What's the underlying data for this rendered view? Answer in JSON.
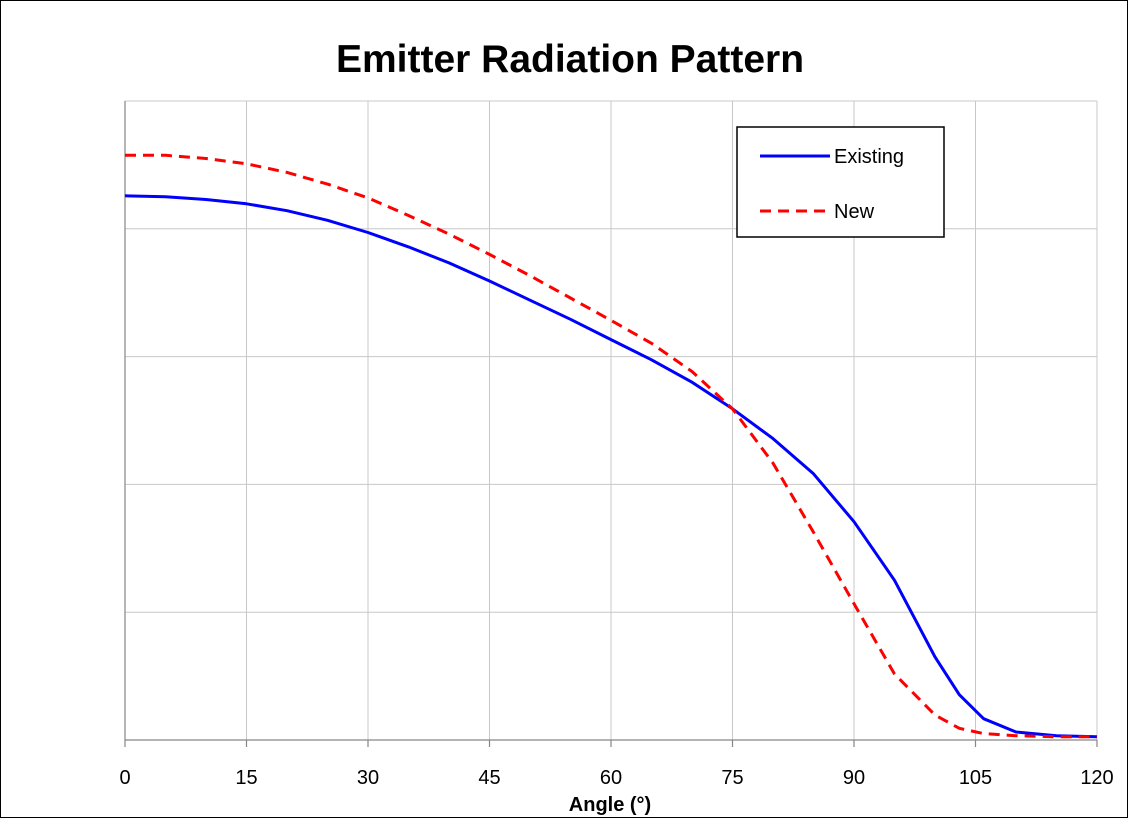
{
  "chart_data": {
    "type": "line",
    "title": "Emitter Radiation Pattern",
    "xlabel": "Angle (°)",
    "ylabel": "",
    "xlim": [
      0,
      120
    ],
    "ylim": [
      0,
      1.2
    ],
    "xticks": [
      0,
      15,
      30,
      45,
      60,
      75,
      90,
      105,
      120
    ],
    "xtick_labels": [
      "0",
      "15",
      "30",
      "45",
      "60",
      "75",
      "90",
      "105",
      "120"
    ],
    "grid": true,
    "legend": "top-right",
    "series": [
      {
        "name": "Existing",
        "color": "#0000ff",
        "dash": "solid",
        "x": [
          0,
          5,
          10,
          15,
          20,
          25,
          30,
          35,
          40,
          45,
          50,
          55,
          60,
          65,
          70,
          75,
          80,
          85,
          90,
          95,
          100,
          103,
          106,
          110,
          115,
          120
        ],
        "y": [
          1.022,
          1.02,
          1.015,
          1.007,
          0.994,
          0.976,
          0.953,
          0.926,
          0.896,
          0.862,
          0.826,
          0.79,
          0.752,
          0.714,
          0.672,
          0.622,
          0.566,
          0.5,
          0.41,
          0.3,
          0.156,
          0.085,
          0.04,
          0.015,
          0.008,
          0.006
        ]
      },
      {
        "name": "New",
        "color": "#ff0000",
        "dash": "dashed",
        "x": [
          0,
          5,
          10,
          15,
          20,
          25,
          30,
          35,
          40,
          45,
          50,
          55,
          60,
          65,
          70,
          75,
          80,
          85,
          90,
          95,
          100,
          103,
          106,
          110,
          115,
          120
        ],
        "y": [
          1.098,
          1.098,
          1.092,
          1.082,
          1.066,
          1.044,
          1.018,
          0.985,
          0.95,
          0.912,
          0.872,
          0.83,
          0.788,
          0.745,
          0.692,
          0.622,
          0.52,
          0.39,
          0.256,
          0.124,
          0.047,
          0.022,
          0.012,
          0.008,
          0.006,
          0.006
        ]
      }
    ]
  }
}
